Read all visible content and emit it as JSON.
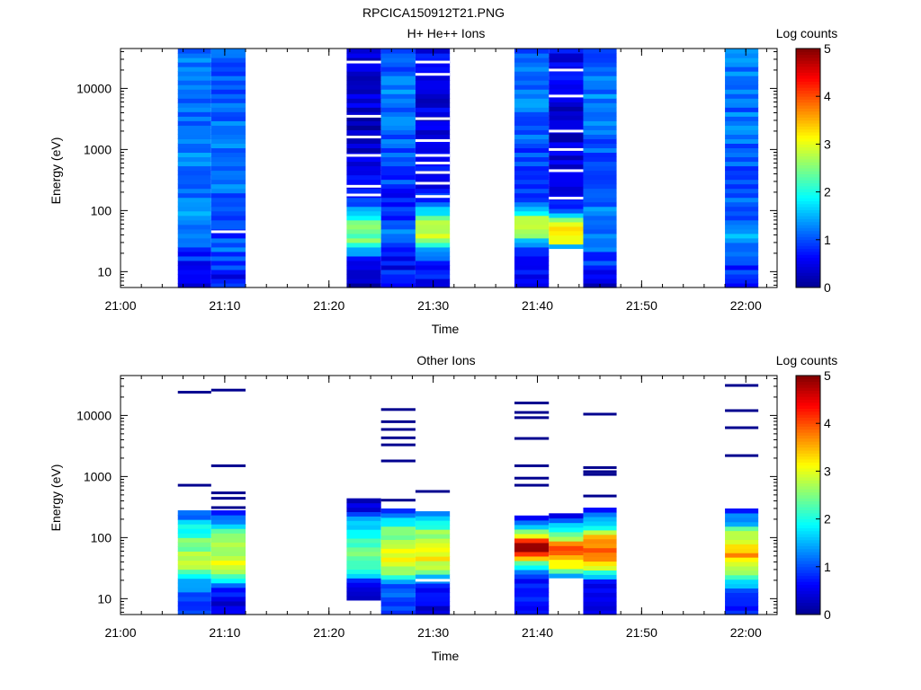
{
  "figure_title": "RPCICA150912T21.PNG",
  "colorscale": [
    "#00008f",
    "#0000ff",
    "#0080ff",
    "#00ffff",
    "#80ff80",
    "#ffff00",
    "#ff8000",
    "#ff0000",
    "#800000"
  ],
  "chart_data": [
    {
      "type": "heatmap",
      "title": "H+ He++ Ions",
      "xlabel": "Time",
      "ylabel": "Energy (eV)",
      "yscale": "log",
      "xlim": [
        "21:00",
        "22:03"
      ],
      "xticks": [
        "21:00",
        "21:10",
        "21:20",
        "21:30",
        "21:40",
        "21:50",
        "22:00"
      ],
      "ylim": [
        5.5,
        45000
      ],
      "yticks": [
        {
          "value": 10,
          "label": "10"
        },
        {
          "value": 100,
          "label": "100"
        },
        {
          "value": 1000,
          "label": "1000"
        },
        {
          "value": 10000,
          "label": "10000"
        }
      ],
      "colorbar": {
        "label": "Log counts",
        "min": 0,
        "max": 5,
        "ticks": [
          "0",
          "1",
          "2",
          "3",
          "4",
          "5"
        ]
      },
      "columns": [
        {
          "start": "21:05.5",
          "end": "21:08.7",
          "emax": 45000,
          "profile": [
            [
              5.5,
              0.6
            ],
            [
              8,
              0.9
            ],
            [
              12,
              0.7
            ],
            [
              20,
              0.8
            ],
            [
              30,
              1.0
            ],
            [
              45,
              1.2
            ],
            [
              70,
              1.3
            ],
            [
              120,
              1.2
            ],
            [
              300,
              1.1
            ],
            [
              1000,
              1.2
            ],
            [
              3000,
              1.1
            ],
            [
              10000,
              1.2
            ],
            [
              45000,
              1.3
            ]
          ],
          "gaps": []
        },
        {
          "start": "21:08.7",
          "end": "21:12.0",
          "emax": 45000,
          "profile": [
            [
              5.5,
              0.7
            ],
            [
              8,
              0.6
            ],
            [
              12,
              0.9
            ],
            [
              20,
              1.0
            ],
            [
              30,
              1.1
            ],
            [
              45,
              0.9
            ],
            [
              70,
              1.1
            ],
            [
              120,
              1.0
            ],
            [
              300,
              1.2
            ],
            [
              1000,
              1.1
            ],
            [
              3000,
              1.2
            ],
            [
              10000,
              1.1
            ],
            [
              45000,
              1.2
            ]
          ],
          "gaps": [
            45
          ]
        },
        {
          "start": "21:21.7",
          "end": "21:25.0",
          "emax": 45000,
          "profile": [
            [
              5.5,
              0.3
            ],
            [
              8,
              0.4
            ],
            [
              12,
              0.5
            ],
            [
              20,
              1.2
            ],
            [
              30,
              2.3
            ],
            [
              45,
              2.4
            ],
            [
              70,
              2.2
            ],
            [
              100,
              1.4
            ],
            [
              150,
              0.8
            ],
            [
              300,
              0.5
            ],
            [
              1000,
              0.4
            ],
            [
              3000,
              0.3
            ],
            [
              10000,
              0.4
            ],
            [
              45000,
              0.3
            ]
          ],
          "gaps": [
            180,
            250,
            800,
            1600,
            3500,
            27000
          ]
        },
        {
          "start": "21:25.0",
          "end": "21:28.3",
          "emax": 45000,
          "profile": [
            [
              5.5,
              0.5
            ],
            [
              8,
              0.9
            ],
            [
              12,
              0.6
            ],
            [
              20,
              0.8
            ],
            [
              30,
              0.9
            ],
            [
              45,
              1.1
            ],
            [
              70,
              0.9
            ],
            [
              120,
              0.7
            ],
            [
              300,
              0.9
            ],
            [
              1000,
              1.0
            ],
            [
              3000,
              1.1
            ],
            [
              10000,
              1.2
            ],
            [
              45000,
              1.1
            ]
          ],
          "gaps": []
        },
        {
          "start": "21:28.3",
          "end": "21:31.6",
          "emax": 45000,
          "profile": [
            [
              5.5,
              0.5
            ],
            [
              8,
              0.6
            ],
            [
              12,
              0.8
            ],
            [
              20,
              1.1
            ],
            [
              30,
              2.6
            ],
            [
              45,
              2.9
            ],
            [
              70,
              2.7
            ],
            [
              100,
              1.5
            ],
            [
              150,
              0.9
            ],
            [
              300,
              0.6
            ],
            [
              1000,
              0.5
            ],
            [
              3000,
              0.4
            ],
            [
              10000,
              0.5
            ],
            [
              45000,
              0.6
            ]
          ],
          "gaps": [
            170,
            280,
            420,
            600,
            800,
            1400,
            3200,
            17000,
            27000
          ]
        },
        {
          "start": "21:37.8",
          "end": "21:41.1",
          "emax": 45000,
          "profile": [
            [
              5.5,
              0.6
            ],
            [
              8,
              0.4
            ],
            [
              12,
              0.7
            ],
            [
              20,
              0.9
            ],
            [
              30,
              1.4
            ],
            [
              45,
              2.8
            ],
            [
              60,
              2.9
            ],
            [
              80,
              2.6
            ],
            [
              100,
              1.3
            ],
            [
              200,
              1.0
            ],
            [
              1000,
              1.0
            ],
            [
              3000,
              1.1
            ],
            [
              10000,
              1.2
            ],
            [
              45000,
              1.1
            ]
          ],
          "gaps": []
        },
        {
          "start": "21:41.1",
          "end": "21:44.4",
          "emax": 45000,
          "emin": 24,
          "profile": [
            [
              24,
              0.5
            ],
            [
              30,
              2.9
            ],
            [
              45,
              3.1
            ],
            [
              70,
              2.8
            ],
            [
              90,
              1.1
            ],
            [
              150,
              0.6
            ],
            [
              300,
              0.5
            ],
            [
              1000,
              0.4
            ],
            [
              3000,
              0.4
            ],
            [
              10000,
              0.5
            ],
            [
              45000,
              0.6
            ]
          ],
          "gaps": [
            160,
            450,
            1000,
            2000,
            7500,
            20000
          ]
        },
        {
          "start": "21:44.4",
          "end": "21:47.6",
          "emax": 45000,
          "profile": [
            [
              5.5,
              0.3
            ],
            [
              8,
              0.6
            ],
            [
              12,
              0.8
            ],
            [
              20,
              1.0
            ],
            [
              30,
              1.2
            ],
            [
              45,
              1.3
            ],
            [
              70,
              1.4
            ],
            [
              120,
              1.2
            ],
            [
              300,
              1.1
            ],
            [
              1000,
              1.0
            ],
            [
              3000,
              1.1
            ],
            [
              10000,
              1.2
            ],
            [
              45000,
              1.0
            ]
          ],
          "gaps": []
        },
        {
          "start": "21:58.0",
          "end": "22:01.2",
          "emax": 45000,
          "profile": [
            [
              5.5,
              0.7
            ],
            [
              8,
              0.8
            ],
            [
              12,
              0.9
            ],
            [
              20,
              1.0
            ],
            [
              30,
              1.2
            ],
            [
              45,
              1.4
            ],
            [
              70,
              1.2
            ],
            [
              120,
              1.1
            ],
            [
              300,
              1.0
            ],
            [
              1000,
              1.1
            ],
            [
              3000,
              1.2
            ],
            [
              10000,
              1.1
            ],
            [
              45000,
              1.2
            ]
          ],
          "gaps": []
        }
      ]
    },
    {
      "type": "heatmap",
      "title": "Other Ions",
      "xlabel": "Time",
      "ylabel": "Energy (eV)",
      "yscale": "log",
      "xlim": [
        "21:00",
        "22:03"
      ],
      "xticks": [
        "21:00",
        "21:10",
        "21:20",
        "21:30",
        "21:40",
        "21:50",
        "22:00"
      ],
      "ylim": [
        5.5,
        45000
      ],
      "yticks": [
        {
          "value": 10,
          "label": "10"
        },
        {
          "value": 100,
          "label": "100"
        },
        {
          "value": 1000,
          "label": "1000"
        },
        {
          "value": 10000,
          "label": "10000"
        }
      ],
      "colorbar": {
        "label": "Log counts",
        "min": 0,
        "max": 5,
        "ticks": [
          "0",
          "1",
          "2",
          "3",
          "4",
          "5"
        ]
      },
      "columns": [
        {
          "start": "21:05.5",
          "end": "21:08.7",
          "emin": 5.5,
          "emax": 280,
          "profile": [
            [
              5.5,
              0.9
            ],
            [
              9,
              0.7
            ],
            [
              15,
              1.2
            ],
            [
              20,
              1.6
            ],
            [
              30,
              2.5
            ],
            [
              50,
              2.8
            ],
            [
              80,
              2.5
            ],
            [
              130,
              2.0
            ],
            [
              200,
              1.3
            ],
            [
              280,
              0.8
            ]
          ],
          "lines": [
            720,
            24000
          ]
        },
        {
          "start": "21:08.7",
          "end": "21:12.0",
          "emin": 5.5,
          "emax": 280,
          "profile": [
            [
              5.5,
              0.8
            ],
            [
              9,
              0.5
            ],
            [
              15,
              0.6
            ],
            [
              20,
              1.9
            ],
            [
              30,
              2.7
            ],
            [
              50,
              3.0
            ],
            [
              80,
              2.6
            ],
            [
              130,
              2.1
            ],
            [
              200,
              1.4
            ],
            [
              280,
              0.6
            ]
          ],
          "lines": [
            310,
            440,
            540,
            1500,
            26000
          ]
        },
        {
          "start": "21:21.7",
          "end": "21:25.0",
          "emin": 9.5,
          "emax": 440,
          "profile": [
            [
              9.5,
              0.3
            ],
            [
              15,
              0.5
            ],
            [
              20,
              1.1
            ],
            [
              30,
              2.2
            ],
            [
              50,
              2.4
            ],
            [
              80,
              2.2
            ],
            [
              130,
              1.8
            ],
            [
              200,
              1.3
            ],
            [
              280,
              0.6
            ],
            [
              440,
              0.3
            ]
          ],
          "lines": []
        },
        {
          "start": "21:25.0",
          "end": "21:28.3",
          "emin": 5.5,
          "emax": 300,
          "profile": [
            [
              5.5,
              1.0
            ],
            [
              15,
              1.0
            ],
            [
              20,
              1.5
            ],
            [
              30,
              2.7
            ],
            [
              50,
              3.0
            ],
            [
              80,
              2.8
            ],
            [
              130,
              2.4
            ],
            [
              200,
              1.6
            ],
            [
              300,
              0.9
            ]
          ],
          "lines": [
            410,
            1800,
            3300,
            4300,
            5900,
            7900,
            12500
          ]
        },
        {
          "start": "21:28.3",
          "end": "21:31.6",
          "emin": 5.5,
          "emax": 270,
          "profile": [
            [
              5.5,
              0.4
            ],
            [
              14,
              0.7
            ],
            [
              20,
              1.2
            ],
            [
              30,
              2.7
            ],
            [
              50,
              3.1
            ],
            [
              80,
              3.0
            ],
            [
              130,
              2.6
            ],
            [
              200,
              1.6
            ],
            [
              270,
              0.8
            ]
          ],
          "lines": [
            570
          ],
          "gaps": [
            20
          ]
        },
        {
          "start": "21:37.8",
          "end": "21:41.1",
          "emin": 5.5,
          "emax": 230,
          "profile": [
            [
              5.5,
              0.4
            ],
            [
              10,
              0.6
            ],
            [
              15,
              0.5
            ],
            [
              20,
              0.7
            ],
            [
              30,
              1.2
            ],
            [
              40,
              2.5
            ],
            [
              55,
              4.5
            ],
            [
              75,
              4.8
            ],
            [
              100,
              3.6
            ],
            [
              150,
              1.9
            ],
            [
              230,
              0.6
            ]
          ],
          "lines": [
            720,
            940,
            1500,
            4200,
            9200,
            11200,
            16000
          ]
        },
        {
          "start": "21:41.1",
          "end": "21:44.4",
          "emin": 22,
          "emax": 250,
          "profile": [
            [
              22,
              0.8
            ],
            [
              26,
              1.5
            ],
            [
              32,
              2.8
            ],
            [
              45,
              3.6
            ],
            [
              70,
              3.8
            ],
            [
              100,
              2.9
            ],
            [
              150,
              1.6
            ],
            [
              250,
              0.6
            ]
          ],
          "lines": []
        },
        {
          "start": "21:44.4",
          "end": "21:47.6",
          "emin": 5.5,
          "emax": 310,
          "profile": [
            [
              5.5,
              0.6
            ],
            [
              14,
              0.4
            ],
            [
              20,
              1.0
            ],
            [
              30,
              2.4
            ],
            [
              45,
              3.8
            ],
            [
              70,
              4.0
            ],
            [
              100,
              3.4
            ],
            [
              150,
              2.0
            ],
            [
              250,
              1.0
            ],
            [
              310,
              0.5
            ]
          ],
          "lines": [
            480,
            1080,
            1200,
            1400,
            10500
          ]
        },
        {
          "start": "21:58.0",
          "end": "22:01.2",
          "emin": 5.5,
          "emax": 300,
          "profile": [
            [
              5.5,
              0.7
            ],
            [
              10,
              0.9
            ],
            [
              15,
              1.2
            ],
            [
              20,
              1.8
            ],
            [
              30,
              2.7
            ],
            [
              50,
              3.5
            ],
            [
              80,
              3.3
            ],
            [
              130,
              2.4
            ],
            [
              200,
              1.3
            ],
            [
              300,
              0.6
            ]
          ],
          "lines": [
            2200,
            6300,
            12000,
            31000
          ]
        }
      ]
    }
  ]
}
